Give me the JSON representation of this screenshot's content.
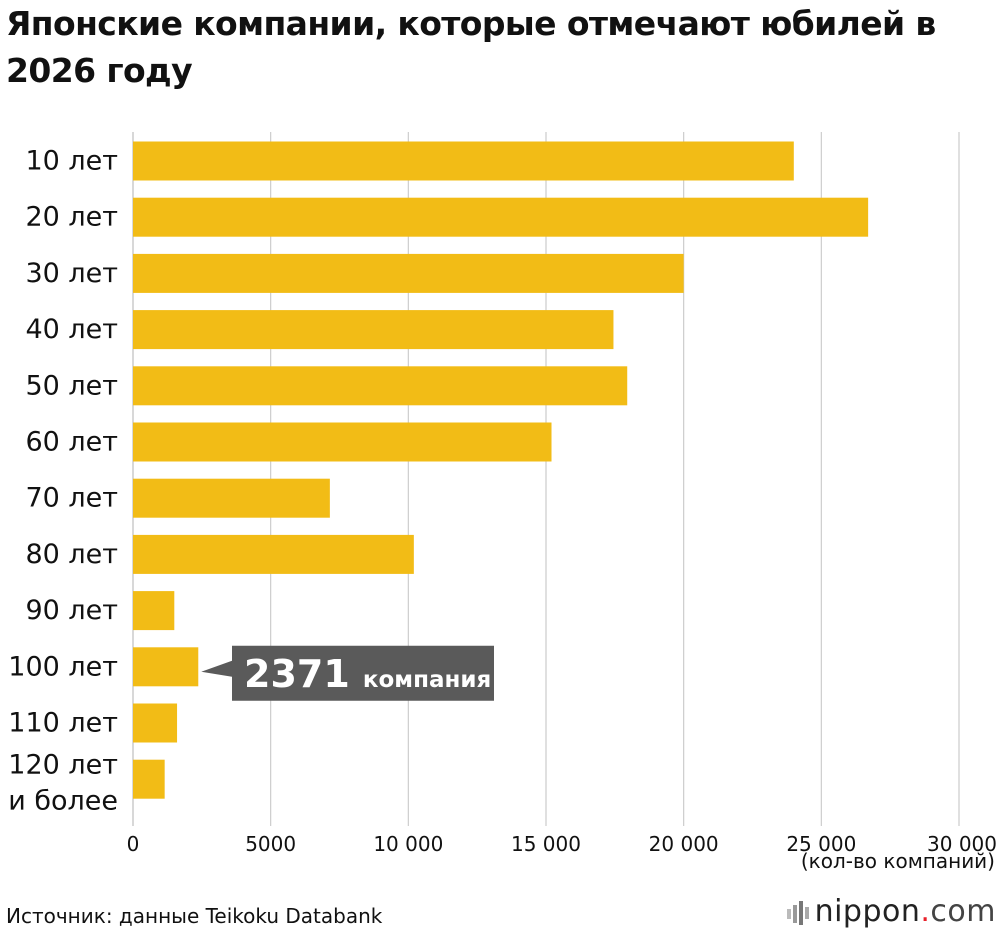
{
  "title": "Японские компании, которые отмечают юбилей в 2026 году",
  "source": "Источник: данные Teikoku Databank",
  "brand": {
    "name": "nippon",
    "dot": ".",
    "tld": "com"
  },
  "colors": {
    "bar": "#F2BC16",
    "grid": "#cccccc",
    "callout_bg": "#5a5a5a",
    "callout_text": "#ffffff"
  },
  "chart_data": {
    "type": "bar",
    "orientation": "horizontal",
    "categories": [
      "10 лет",
      "20 лет",
      "30 лет",
      "40 лет",
      "50 лет",
      "60 лет",
      "70 лет",
      "80 лет",
      "90 лет",
      "100 лет",
      "110 лет",
      "120 лет и более"
    ],
    "values": [
      24000,
      26700,
      20000,
      17450,
      17950,
      15200,
      7150,
      10200,
      1500,
      2371,
      1600,
      1150
    ],
    "xlim": [
      0,
      30000
    ],
    "xticks": [
      0,
      5000,
      10000,
      15000,
      20000,
      25000,
      30000
    ],
    "xtick_labels": [
      "0",
      "5000",
      "10 000",
      "15 000",
      "20 000",
      "25 000",
      "30 000"
    ],
    "xlabel": "(кол-во компаний)",
    "grid": true,
    "annotation": {
      "category": "100 лет",
      "value_text": "2371",
      "unit_text": "компания"
    }
  }
}
